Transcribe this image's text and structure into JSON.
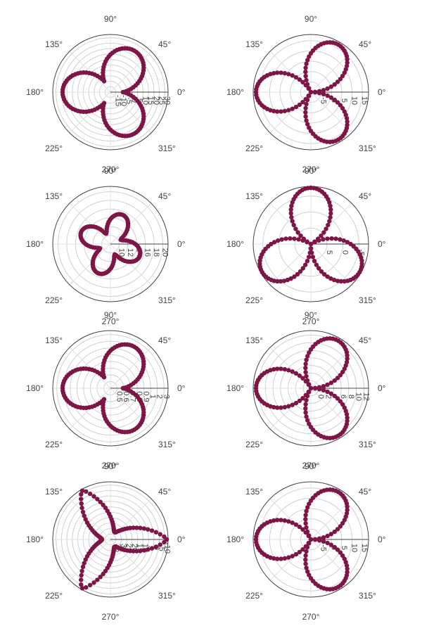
{
  "angular_tick_labels": [
    "0°",
    "45°",
    "90°",
    "135°",
    "180°",
    "225°",
    "270°",
    "315°"
  ],
  "colors": {
    "marker": "#7e1547",
    "grid": "#d0d0d0",
    "axis": "#444444"
  },
  "chart_data": [
    {
      "type": "scatter",
      "subplot": "row1-left",
      "curve": "rose-3-offset",
      "radial_range": [
        -15,
        30
      ],
      "radial_ticks": [
        "-15",
        "-10",
        "-5",
        "0",
        "5",
        "10",
        "15",
        "20",
        "25",
        "30"
      ],
      "grid": true
    },
    {
      "type": "scatter",
      "subplot": "row1-right",
      "curve": "rose-3",
      "radial_range": [
        -15,
        15
      ],
      "radial_ticks": [
        "-5",
        "0",
        "5",
        "10",
        "15"
      ],
      "grid": true
    },
    {
      "type": "scatter",
      "subplot": "row2-left",
      "curve": "rose-4",
      "radial_range": [
        10,
        20
      ],
      "radial_ticks": [
        "10",
        "12",
        "14",
        "16",
        "18",
        "20"
      ],
      "grid": true
    },
    {
      "type": "scatter",
      "subplot": "row2-right",
      "curve": "rose-3-rotated",
      "radial_range": [
        15,
        -15
      ],
      "radial_ticks": [
        "5",
        "0",
        "-5"
      ],
      "grid": true
    },
    {
      "type": "scatter",
      "subplot": "row3-left",
      "curve": "rose-3-offset",
      "radial_range": [
        0.5,
        3
      ],
      "radial_scale": "log",
      "radial_ticks": [
        "0.5",
        "0.6",
        "0.7",
        "0.8",
        "0.9",
        "1",
        "2",
        "3"
      ],
      "grid": true
    },
    {
      "type": "scatter",
      "subplot": "row3-right",
      "curve": "rose-3",
      "radial_range": [
        0,
        12
      ],
      "radial_ticks": [
        "0",
        "2",
        "4",
        "6",
        "8",
        "10",
        "12"
      ],
      "grid": true
    },
    {
      "type": "scatter",
      "subplot": "row4-left",
      "curve": "rose-3-offset-reversed",
      "radial_range": [
        35,
        -10
      ],
      "radial_ticks": [
        "35",
        "30",
        "25",
        "20",
        "15",
        "10",
        "5",
        "0",
        "-5",
        "-10"
      ],
      "grid": true
    },
    {
      "type": "scatter",
      "subplot": "row4-right",
      "curve": "rose-3",
      "radial_range": [
        -15,
        15
      ],
      "radial_ticks": [
        "-5",
        "0",
        "5",
        "10",
        "15"
      ],
      "grid": true
    }
  ]
}
